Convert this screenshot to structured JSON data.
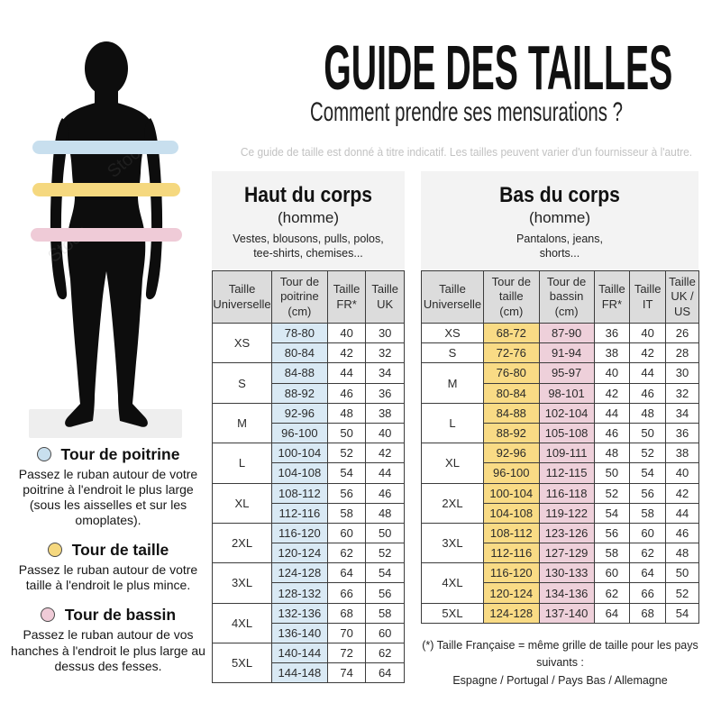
{
  "header": {
    "title": "GUIDE DES TAILLES",
    "subtitle": "Comment prendre ses mensurations ?",
    "disclaimer": "Ce guide de taille est donné à titre indicatif. Les tailles peuvent varier d'un fournisseur à l'autre."
  },
  "colors": {
    "cell_chest": "#d9e9f4",
    "cell_waist": "#f9db85",
    "cell_hips": "#eed0da",
    "band_chest": "#c8dfee",
    "band_waist": "#f5d87f",
    "band_hips": "#efcbd7",
    "panel_gray": "#f3f3f3",
    "header_cell_gray": "#dcdcdc",
    "silhouette_black": "#0d0d0d",
    "ground_gray": "#eeeeee"
  },
  "figure": {
    "watermark": "Stock"
  },
  "legend": [
    {
      "tint": "band_chest",
      "title": "Tour de poitrine",
      "text": "Passez le ruban autour de votre poitrine à l'endroit le plus large (sous les aisselles et sur les omoplates)."
    },
    {
      "tint": "band_waist",
      "title": "Tour de taille",
      "text": "Passez le ruban autour de votre taille à l'endroit le plus mince."
    },
    {
      "tint": "band_hips",
      "title": "Tour de bassin",
      "text": "Passez le ruban autour de vos hanches à l'endroit le plus large au dessus des fesses."
    }
  ],
  "tables": [
    {
      "id": "haut",
      "title": "Haut du corps",
      "subtitle": "(homme)",
      "description": "Vestes, blousons, pulls, polos,\ntee-shirts, chemises...",
      "columns": [
        {
          "label": "Taille\nUniverselle"
        },
        {
          "label": "Tour de\npoitrine\n(cm)",
          "tint": "cell_chest"
        },
        {
          "label": "Taille\nFR*"
        },
        {
          "label": "Taille\nUK"
        }
      ],
      "groups": [
        {
          "size": "XS",
          "rows": [
            [
              "78-80",
              "40",
              "30"
            ],
            [
              "80-84",
              "42",
              "32"
            ]
          ]
        },
        {
          "size": "S",
          "rows": [
            [
              "84-88",
              "44",
              "34"
            ],
            [
              "88-92",
              "46",
              "36"
            ]
          ]
        },
        {
          "size": "M",
          "rows": [
            [
              "92-96",
              "48",
              "38"
            ],
            [
              "96-100",
              "50",
              "40"
            ]
          ]
        },
        {
          "size": "L",
          "rows": [
            [
              "100-104",
              "52",
              "42"
            ],
            [
              "104-108",
              "54",
              "44"
            ]
          ]
        },
        {
          "size": "XL",
          "rows": [
            [
              "108-112",
              "56",
              "46"
            ],
            [
              "112-116",
              "58",
              "48"
            ]
          ]
        },
        {
          "size": "2XL",
          "rows": [
            [
              "116-120",
              "60",
              "50"
            ],
            [
              "120-124",
              "62",
              "52"
            ]
          ]
        },
        {
          "size": "3XL",
          "rows": [
            [
              "124-128",
              "64",
              "54"
            ],
            [
              "128-132",
              "66",
              "56"
            ]
          ]
        },
        {
          "size": "4XL",
          "rows": [
            [
              "132-136",
              "68",
              "58"
            ],
            [
              "136-140",
              "70",
              "60"
            ]
          ]
        },
        {
          "size": "5XL",
          "rows": [
            [
              "140-144",
              "72",
              "62"
            ],
            [
              "144-148",
              "74",
              "64"
            ]
          ]
        }
      ]
    },
    {
      "id": "bas",
      "title": "Bas du corps",
      "subtitle": "(homme)",
      "description": "Pantalons, jeans,\nshorts...",
      "columns": [
        {
          "label": "Taille\nUniverselle"
        },
        {
          "label": "Tour de\ntaille\n(cm)",
          "tint": "cell_waist"
        },
        {
          "label": "Tour de\nbassin\n(cm)",
          "tint": "cell_hips"
        },
        {
          "label": "Taille\nFR*"
        },
        {
          "label": "Taille\nIT"
        },
        {
          "label": "Taille\nUK /\nUS"
        }
      ],
      "groups": [
        {
          "size": "XS",
          "rows": [
            [
              "68-72",
              "87-90",
              "36",
              "40",
              "26"
            ]
          ]
        },
        {
          "size": "S",
          "rows": [
            [
              "72-76",
              "91-94",
              "38",
              "42",
              "28"
            ]
          ]
        },
        {
          "size": "M",
          "rows": [
            [
              "76-80",
              "95-97",
              "40",
              "44",
              "30"
            ],
            [
              "80-84",
              "98-101",
              "42",
              "46",
              "32"
            ]
          ]
        },
        {
          "size": "L",
          "rows": [
            [
              "84-88",
              "102-104",
              "44",
              "48",
              "34"
            ],
            [
              "88-92",
              "105-108",
              "46",
              "50",
              "36"
            ]
          ]
        },
        {
          "size": "XL",
          "rows": [
            [
              "92-96",
              "109-111",
              "48",
              "52",
              "38"
            ],
            [
              "96-100",
              "112-115",
              "50",
              "54",
              "40"
            ]
          ]
        },
        {
          "size": "2XL",
          "rows": [
            [
              "100-104",
              "116-118",
              "52",
              "56",
              "42"
            ],
            [
              "104-108",
              "119-122",
              "54",
              "58",
              "44"
            ]
          ]
        },
        {
          "size": "3XL",
          "rows": [
            [
              "108-112",
              "123-126",
              "56",
              "60",
              "46"
            ],
            [
              "112-116",
              "127-129",
              "58",
              "62",
              "48"
            ]
          ]
        },
        {
          "size": "4XL",
          "rows": [
            [
              "116-120",
              "130-133",
              "60",
              "64",
              "50"
            ],
            [
              "120-124",
              "134-136",
              "62",
              "66",
              "52"
            ]
          ]
        },
        {
          "size": "5XL",
          "rows": [
            [
              "124-128",
              "137-140",
              "64",
              "68",
              "54"
            ]
          ]
        }
      ]
    }
  ],
  "footnote": {
    "line1": "(*) Taille Française = même grille de taille pour les pays suivants :",
    "line2": "Espagne / Portugal / Pays Bas / Allemagne"
  }
}
